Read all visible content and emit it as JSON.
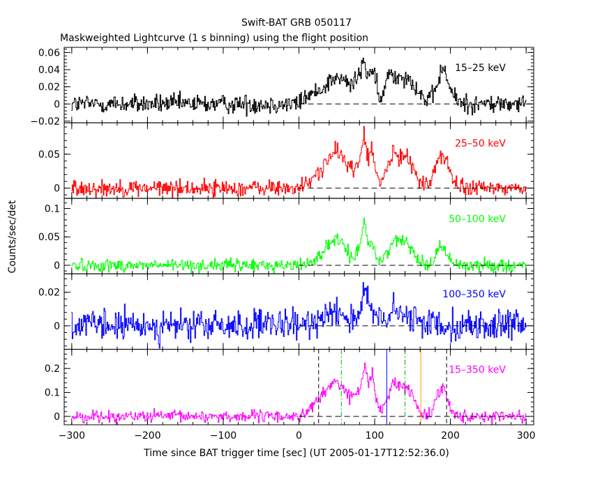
{
  "title": "Swift-BAT GRB 050117",
  "subtitle": "Maskweighted Lightcurve (1 s binning) using the flight position",
  "xlabel": "Time since BAT trigger time [sec] (UT 2005-01-17T12:52:36.0)",
  "ylabel": "Counts/sec/det",
  "chart_data": {
    "type": "line",
    "title": "Swift-BAT GRB 050117",
    "subtitle": "Maskweighted Lightcurve (1 s binning) using the flight position",
    "xlabel": "Time since BAT trigger time [sec] (UT 2005-01-17T12:52:36.0)",
    "ylabel": "Counts/sec/det",
    "xlim": [
      -310,
      310
    ],
    "x_ticks": [
      -300,
      -200,
      -100,
      0,
      100,
      200,
      300
    ],
    "x_tick_labels": [
      "−300",
      "−200",
      "−100",
      "0",
      "100",
      "200",
      "300"
    ],
    "binning_s": 1,
    "grid": false,
    "legend": "per-panel label at top-right",
    "panels": [
      {
        "label": "15–25 keV",
        "color": "#000000",
        "ylim": [
          -0.022,
          0.066
        ],
        "y_ticks": [
          -0.02,
          0,
          0.02,
          0.04,
          0.06
        ],
        "y_tick_labels": [
          "−0.02",
          "0",
          "0.02",
          "0.04",
          "0.06"
        ],
        "noise": 0.0055,
        "zero_line": true,
        "profile": [
          [
            -300,
            0
          ],
          [
            0,
            0
          ],
          [
            8,
            0.008
          ],
          [
            20,
            0.012
          ],
          [
            35,
            0.022
          ],
          [
            45,
            0.03
          ],
          [
            58,
            0.028
          ],
          [
            70,
            0.022
          ],
          [
            78,
            0.03
          ],
          [
            85,
            0.05
          ],
          [
            90,
            0.035
          ],
          [
            97,
            0.04
          ],
          [
            104,
            0.015
          ],
          [
            108,
            0.002
          ],
          [
            114,
            0.02
          ],
          [
            120,
            0.04
          ],
          [
            128,
            0.03
          ],
          [
            135,
            0.035
          ],
          [
            145,
            0.03
          ],
          [
            155,
            0.02
          ],
          [
            163,
            0.008
          ],
          [
            170,
            0.004
          ],
          [
            178,
            0.008
          ],
          [
            186,
            0.035
          ],
          [
            193,
            0.04
          ],
          [
            200,
            0.015
          ],
          [
            210,
            0.003
          ],
          [
            225,
            0
          ],
          [
            300,
            0
          ]
        ]
      },
      {
        "label": "25–50 keV",
        "color": "#ff0000",
        "ylim": [
          -0.015,
          0.096
        ],
        "y_ticks": [
          0,
          0.05
        ],
        "y_tick_labels": [
          "0",
          "0.05"
        ],
        "noise": 0.006,
        "zero_line": true,
        "profile": [
          [
            -300,
            0
          ],
          [
            0,
            0
          ],
          [
            10,
            0.006
          ],
          [
            20,
            0.015
          ],
          [
            30,
            0.03
          ],
          [
            42,
            0.045
          ],
          [
            50,
            0.055
          ],
          [
            58,
            0.045
          ],
          [
            66,
            0.035
          ],
          [
            74,
            0.025
          ],
          [
            80,
            0.04
          ],
          [
            86,
            0.08
          ],
          [
            92,
            0.04
          ],
          [
            96,
            0.06
          ],
          [
            102,
            0.02
          ],
          [
            108,
            0.005
          ],
          [
            116,
            0.03
          ],
          [
            125,
            0.05
          ],
          [
            133,
            0.045
          ],
          [
            142,
            0.05
          ],
          [
            150,
            0.035
          ],
          [
            158,
            0.01
          ],
          [
            166,
            0.003
          ],
          [
            174,
            0.01
          ],
          [
            182,
            0.04
          ],
          [
            190,
            0.05
          ],
          [
            198,
            0.03
          ],
          [
            206,
            0.006
          ],
          [
            215,
            0
          ],
          [
            300,
            0
          ]
        ]
      },
      {
        "label": "50–100 keV",
        "color": "#00ff00",
        "ylim": [
          -0.015,
          0.118
        ],
        "y_ticks": [
          0,
          0.05,
          0.1
        ],
        "y_tick_labels": [
          "0",
          "0.05",
          "0.1"
        ],
        "noise": 0.0055,
        "zero_line": true,
        "profile": [
          [
            -300,
            0
          ],
          [
            0,
            0
          ],
          [
            10,
            0.004
          ],
          [
            22,
            0.01
          ],
          [
            32,
            0.025
          ],
          [
            42,
            0.04
          ],
          [
            50,
            0.045
          ],
          [
            58,
            0.035
          ],
          [
            66,
            0.02
          ],
          [
            74,
            0.015
          ],
          [
            80,
            0.03
          ],
          [
            86,
            0.085
          ],
          [
            92,
            0.035
          ],
          [
            97,
            0.04
          ],
          [
            103,
            0.012
          ],
          [
            110,
            0.005
          ],
          [
            118,
            0.03
          ],
          [
            126,
            0.045
          ],
          [
            134,
            0.04
          ],
          [
            142,
            0.045
          ],
          [
            150,
            0.03
          ],
          [
            158,
            0.008
          ],
          [
            166,
            0.002
          ],
          [
            176,
            0.005
          ],
          [
            184,
            0.03
          ],
          [
            190,
            0.035
          ],
          [
            198,
            0.012
          ],
          [
            205,
            0.003
          ],
          [
            215,
            0
          ],
          [
            300,
            0
          ]
        ]
      },
      {
        "label": "100–350 keV",
        "color": "#0000ff",
        "ylim": [
          -0.014,
          0.031
        ],
        "y_ticks": [
          0,
          0.02
        ],
        "y_tick_labels": [
          "0",
          "0.02"
        ],
        "noise": 0.0045,
        "zero_line": true,
        "profile": [
          [
            -300,
            0
          ],
          [
            10,
            0
          ],
          [
            25,
            0.004
          ],
          [
            35,
            0.008
          ],
          [
            45,
            0.01
          ],
          [
            55,
            0.008
          ],
          [
            65,
            0.004
          ],
          [
            75,
            0.005
          ],
          [
            82,
            0.012
          ],
          [
            88,
            0.02
          ],
          [
            94,
            0.01
          ],
          [
            102,
            0.004
          ],
          [
            110,
            0.003
          ],
          [
            118,
            0.006
          ],
          [
            128,
            0.008
          ],
          [
            138,
            0.006
          ],
          [
            148,
            0.004
          ],
          [
            160,
            0.002
          ],
          [
            180,
            0.002
          ],
          [
            195,
            0.001
          ],
          [
            210,
            0
          ],
          [
            300,
            0
          ]
        ]
      },
      {
        "label": "15–350 keV",
        "color": "#ff00ff",
        "ylim": [
          -0.035,
          0.28
        ],
        "y_ticks": [
          0,
          0.1,
          0.2
        ],
        "y_tick_labels": [
          "0",
          "0.1",
          "0.2"
        ],
        "noise": 0.012,
        "zero_line": true,
        "profile": [
          [
            -300,
            0
          ],
          [
            0,
            0
          ],
          [
            8,
            0.015
          ],
          [
            18,
            0.04
          ],
          [
            28,
            0.08
          ],
          [
            40,
            0.12
          ],
          [
            48,
            0.15
          ],
          [
            58,
            0.12
          ],
          [
            68,
            0.08
          ],
          [
            76,
            0.09
          ],
          [
            82,
            0.13
          ],
          [
            87,
            0.22
          ],
          [
            92,
            0.14
          ],
          [
            97,
            0.17
          ],
          [
            103,
            0.06
          ],
          [
            109,
            0.015
          ],
          [
            116,
            0.08
          ],
          [
            124,
            0.14
          ],
          [
            132,
            0.12
          ],
          [
            140,
            0.13
          ],
          [
            148,
            0.1
          ],
          [
            156,
            0.04
          ],
          [
            164,
            0.01
          ],
          [
            174,
            0.015
          ],
          [
            182,
            0.08
          ],
          [
            190,
            0.13
          ],
          [
            198,
            0.06
          ],
          [
            206,
            0.012
          ],
          [
            215,
            0
          ],
          [
            300,
            0
          ]
        ],
        "markers": [
          {
            "x": 26,
            "color": "#000000",
            "style": "dashed"
          },
          {
            "x": 56,
            "color": "#00aa00",
            "style": "dashdot"
          },
          {
            "x": 116,
            "color": "#0000ff",
            "style": "solid"
          },
          {
            "x": 140,
            "color": "#00aa00",
            "style": "dashdot"
          },
          {
            "x": 161,
            "color": "#ff9900",
            "style": "solid"
          },
          {
            "x": 195,
            "color": "#000000",
            "style": "dashed"
          }
        ]
      }
    ]
  }
}
